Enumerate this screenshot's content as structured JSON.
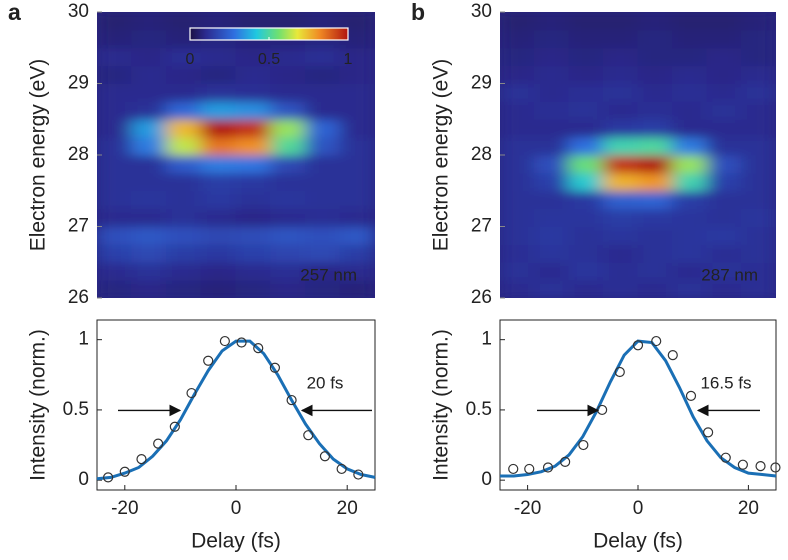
{
  "chart_data": [
    {
      "type": "heatmap",
      "panel_label": "a",
      "ylabel": "Electron energy (eV)",
      "ylim": [
        26,
        30
      ],
      "yticks": [
        26,
        27,
        28,
        29,
        30
      ],
      "y": [
        26.125,
        26.375,
        26.625,
        26.875,
        27.125,
        27.375,
        27.625,
        27.875,
        28.125,
        28.375,
        28.625,
        28.875,
        29.125,
        29.375,
        29.625,
        29.875
      ],
      "z": [
        [
          0.08,
          0.09,
          0.08,
          0.07,
          0.08,
          0.09,
          0.08,
          0.07
        ],
        [
          0.1,
          0.12,
          0.1,
          0.09,
          0.1,
          0.11,
          0.09,
          0.1
        ],
        [
          0.16,
          0.18,
          0.15,
          0.14,
          0.16,
          0.17,
          0.18,
          0.15
        ],
        [
          0.2,
          0.22,
          0.2,
          0.18,
          0.19,
          0.21,
          0.2,
          0.22
        ],
        [
          0.1,
          0.1,
          0.12,
          0.1,
          0.09,
          0.1,
          0.11,
          0.1
        ],
        [
          0.12,
          0.13,
          0.12,
          0.14,
          0.12,
          0.13,
          0.12,
          0.12
        ],
        [
          0.12,
          0.12,
          0.12,
          0.15,
          0.14,
          0.12,
          0.12,
          0.12
        ],
        [
          0.12,
          0.12,
          0.23,
          0.3,
          0.29,
          0.18,
          0.12,
          0.12
        ],
        [
          0.12,
          0.3,
          0.64,
          0.85,
          0.81,
          0.51,
          0.21,
          0.12
        ],
        [
          0.1,
          0.35,
          0.75,
          1,
          0.95,
          0.6,
          0.25,
          0.1
        ],
        [
          0.1,
          0.12,
          0.26,
          0.35,
          0.33,
          0.21,
          0.1,
          0.1
        ],
        [
          0.1,
          0.1,
          0.1,
          0.12,
          0.11,
          0.1,
          0.1,
          0.1
        ],
        [
          0.08,
          0.1,
          0.09,
          0.08,
          0.1,
          0.09,
          0.08,
          0.09
        ],
        [
          0.1,
          0.09,
          0.11,
          0.1,
          0.09,
          0.1,
          0.11,
          0.09
        ],
        [
          0.07,
          0.08,
          0.07,
          0.08,
          0.07,
          0.07,
          0.08,
          0.07
        ],
        [
          0.06,
          0.07,
          0.06,
          0.07,
          0.06,
          0.06,
          0.07,
          0.06
        ]
      ],
      "annotation": "257 nm",
      "colorbar": {
        "clim": [
          0,
          1
        ],
        "ticks": [
          0,
          0.5,
          1
        ]
      }
    },
    {
      "type": "scatter",
      "xlabel": "Delay (fs)",
      "ylabel": "Intensity (norm.)",
      "xlim": [
        -25,
        25
      ],
      "ylim": [
        -0.07,
        1.14
      ],
      "xticks": [
        -20,
        0,
        20
      ],
      "yticks": [
        0,
        0.5,
        1
      ],
      "points": {
        "x": [
          -23,
          -20,
          -17,
          -14,
          -11,
          -8,
          -5,
          -2,
          1,
          4,
          7,
          10,
          13,
          16,
          19,
          22
        ],
        "values": [
          0.02,
          0.06,
          0.15,
          0.26,
          0.38,
          0.62,
          0.85,
          0.99,
          0.98,
          0.94,
          0.8,
          0.57,
          0.32,
          0.17,
          0.08,
          0.04
        ],
        "color": "#333333"
      },
      "fit": {
        "x": [
          -25,
          -22.5,
          -20,
          -17.5,
          -15,
          -12.5,
          -10,
          -7.5,
          -5,
          -2.5,
          0,
          2.5,
          5,
          7.5,
          10,
          12.5,
          15,
          17.5,
          20,
          22.5,
          25
        ],
        "values": [
          0.01,
          0.02,
          0.05,
          0.09,
          0.17,
          0.28,
          0.43,
          0.61,
          0.78,
          0.92,
          0.99,
          0.99,
          0.9,
          0.75,
          0.57,
          0.4,
          0.26,
          0.15,
          0.08,
          0.04,
          0.02
        ],
        "color": "#1a6fb5"
      },
      "annotation": "20 fs"
    },
    {
      "type": "heatmap",
      "panel_label": "b",
      "ylabel": "Electron energy (eV)",
      "ylim": [
        26,
        30
      ],
      "yticks": [
        26,
        27,
        28,
        29,
        30
      ],
      "y": [
        26.125,
        26.375,
        26.625,
        26.875,
        27.125,
        27.375,
        27.625,
        27.875,
        28.125,
        28.375,
        28.625,
        28.875,
        29.125,
        29.375,
        29.625,
        29.875
      ],
      "z": [
        [
          0.1,
          0.12,
          0.1,
          0.11,
          0.1,
          0.12,
          0.1,
          0.11
        ],
        [
          0.12,
          0.1,
          0.13,
          0.11,
          0.12,
          0.1,
          0.12,
          0.11
        ],
        [
          0.11,
          0.13,
          0.12,
          0.1,
          0.12,
          0.13,
          0.11,
          0.12
        ],
        [
          0.12,
          0.14,
          0.12,
          0.13,
          0.12,
          0.13,
          0.14,
          0.12
        ],
        [
          0.12,
          0.13,
          0.13,
          0.15,
          0.14,
          0.13,
          0.12,
          0.13
        ],
        [
          0.12,
          0.12,
          0.14,
          0.24,
          0.25,
          0.15,
          0.12,
          0.12
        ],
        [
          0.12,
          0.16,
          0.44,
          0.76,
          0.8,
          0.48,
          0.16,
          0.12
        ],
        [
          0.12,
          0.2,
          0.55,
          0.95,
          1,
          0.6,
          0.2,
          0.12
        ],
        [
          0.12,
          0.12,
          0.28,
          0.48,
          0.5,
          0.3,
          0.12,
          0.12
        ],
        [
          0.1,
          0.1,
          0.1,
          0.14,
          0.15,
          0.1,
          0.1,
          0.1
        ],
        [
          0.1,
          0.11,
          0.12,
          0.1,
          0.11,
          0.1,
          0.12,
          0.1
        ],
        [
          0.12,
          0.1,
          0.11,
          0.12,
          0.1,
          0.11,
          0.1,
          0.12
        ],
        [
          0.09,
          0.1,
          0.09,
          0.1,
          0.09,
          0.1,
          0.09,
          0.1
        ],
        [
          0.08,
          0.09,
          0.08,
          0.09,
          0.08,
          0.08,
          0.09,
          0.08
        ],
        [
          0.07,
          0.08,
          0.07,
          0.07,
          0.08,
          0.07,
          0.07,
          0.08
        ],
        [
          0.06,
          0.07,
          0.06,
          0.06,
          0.07,
          0.06,
          0.06,
          0.07
        ]
      ],
      "annotation": "287 nm"
    },
    {
      "type": "scatter",
      "xlabel": "Delay (fs)",
      "ylabel": "Intensity (norm.)",
      "xlim": [
        -25,
        25
      ],
      "ylim": [
        -0.07,
        1.14
      ],
      "xticks": [
        -20,
        0,
        20
      ],
      "yticks": [
        0,
        0.5,
        1
      ],
      "points": {
        "x": [
          -22.6,
          -19.7,
          -16.3,
          -13.2,
          -9.9,
          -6.5,
          -3.3,
          0,
          3.3,
          6.3,
          9.6,
          12.7,
          15.9,
          19,
          22.2,
          24.9
        ],
        "values": [
          0.08,
          0.08,
          0.09,
          0.13,
          0.25,
          0.5,
          0.77,
          0.96,
          0.99,
          0.89,
          0.6,
          0.34,
          0.16,
          0.11,
          0.1,
          0.09
        ],
        "color": "#333333"
      },
      "fit": {
        "x": [
          -25,
          -22.5,
          -20,
          -17.5,
          -15,
          -12.5,
          -10,
          -7.5,
          -5,
          -2.5,
          0,
          2.5,
          5,
          7.5,
          10,
          12.5,
          15,
          17.5,
          20,
          22.5,
          25
        ],
        "values": [
          0.03,
          0.03,
          0.04,
          0.06,
          0.1,
          0.18,
          0.31,
          0.49,
          0.7,
          0.89,
          0.99,
          0.98,
          0.85,
          0.66,
          0.45,
          0.28,
          0.16,
          0.09,
          0.05,
          0.04,
          0.03
        ],
        "color": "#1a6fb5"
      },
      "annotation": "16.5 fs"
    }
  ]
}
